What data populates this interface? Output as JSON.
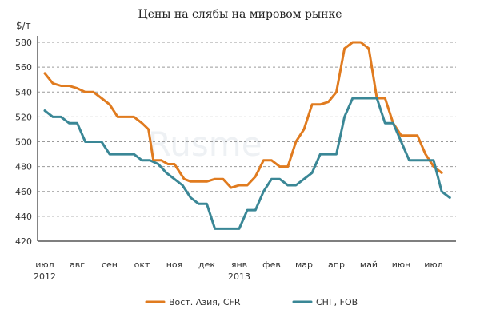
{
  "chart_data": {
    "type": "line",
    "title": "Цены на слябы на мировом рынке",
    "ylabel": "$/т",
    "ylim": [
      420,
      580
    ],
    "yticks": [
      420,
      440,
      460,
      480,
      500,
      520,
      540,
      560,
      580
    ],
    "grid": "horizontal",
    "legend_position": "bottom",
    "months": [
      {
        "label": "июл",
        "year": "2012"
      },
      {
        "label": "авг",
        "year": ""
      },
      {
        "label": "сен",
        "year": ""
      },
      {
        "label": "окт",
        "year": ""
      },
      {
        "label": "ноя",
        "year": ""
      },
      {
        "label": "дек",
        "year": ""
      },
      {
        "label": "янв",
        "year": "2013"
      },
      {
        "label": "фев",
        "year": ""
      },
      {
        "label": "мар",
        "year": ""
      },
      {
        "label": "апр",
        "year": ""
      },
      {
        "label": "май",
        "year": ""
      },
      {
        "label": "июн",
        "year": ""
      },
      {
        "label": "июл",
        "year": ""
      }
    ],
    "x_unit": "months since July 2012",
    "series": [
      {
        "name": "Вост. Азия, CFR",
        "color": "#e07b1f",
        "points": [
          [
            0.0,
            555
          ],
          [
            0.25,
            547
          ],
          [
            0.5,
            545
          ],
          [
            0.75,
            545
          ],
          [
            1.0,
            543
          ],
          [
            1.25,
            540
          ],
          [
            1.5,
            540
          ],
          [
            1.75,
            535
          ],
          [
            2.0,
            530
          ],
          [
            2.25,
            520
          ],
          [
            2.5,
            520
          ],
          [
            2.75,
            520
          ],
          [
            3.0,
            515
          ],
          [
            3.2,
            510
          ],
          [
            3.35,
            485
          ],
          [
            3.6,
            485
          ],
          [
            3.8,
            482
          ],
          [
            4.0,
            482
          ],
          [
            4.3,
            470
          ],
          [
            4.5,
            468
          ],
          [
            4.75,
            468
          ],
          [
            5.0,
            468
          ],
          [
            5.25,
            470
          ],
          [
            5.5,
            470
          ],
          [
            5.75,
            463
          ],
          [
            6.0,
            465
          ],
          [
            6.25,
            465
          ],
          [
            6.5,
            472
          ],
          [
            6.75,
            485
          ],
          [
            7.0,
            485
          ],
          [
            7.25,
            480
          ],
          [
            7.5,
            480
          ],
          [
            7.75,
            500
          ],
          [
            8.0,
            510
          ],
          [
            8.25,
            530
          ],
          [
            8.5,
            530
          ],
          [
            8.75,
            532
          ],
          [
            9.0,
            540
          ],
          [
            9.25,
            575
          ],
          [
            9.5,
            580
          ],
          [
            9.75,
            580
          ],
          [
            10.0,
            575
          ],
          [
            10.25,
            535
          ],
          [
            10.5,
            535
          ],
          [
            10.75,
            515
          ],
          [
            11.0,
            505
          ],
          [
            11.25,
            505
          ],
          [
            11.5,
            505
          ],
          [
            11.75,
            490
          ],
          [
            12.0,
            480
          ],
          [
            12.25,
            475
          ]
        ]
      },
      {
        "name": "СНГ, FOB",
        "color": "#3a8796",
        "points": [
          [
            0.0,
            525
          ],
          [
            0.25,
            520
          ],
          [
            0.5,
            520
          ],
          [
            0.75,
            515
          ],
          [
            1.0,
            515
          ],
          [
            1.25,
            500
          ],
          [
            1.5,
            500
          ],
          [
            1.75,
            500
          ],
          [
            2.0,
            490
          ],
          [
            2.25,
            490
          ],
          [
            2.5,
            490
          ],
          [
            2.75,
            490
          ],
          [
            3.0,
            485
          ],
          [
            3.25,
            485
          ],
          [
            3.5,
            482
          ],
          [
            3.75,
            475
          ],
          [
            4.0,
            470
          ],
          [
            4.25,
            465
          ],
          [
            4.5,
            455
          ],
          [
            4.75,
            450
          ],
          [
            5.0,
            450
          ],
          [
            5.25,
            430
          ],
          [
            5.5,
            430
          ],
          [
            5.75,
            430
          ],
          [
            6.0,
            430
          ],
          [
            6.25,
            445
          ],
          [
            6.5,
            445
          ],
          [
            6.75,
            460
          ],
          [
            7.0,
            470
          ],
          [
            7.25,
            470
          ],
          [
            7.5,
            465
          ],
          [
            7.75,
            465
          ],
          [
            8.0,
            470
          ],
          [
            8.25,
            475
          ],
          [
            8.5,
            490
          ],
          [
            8.75,
            490
          ],
          [
            9.0,
            490
          ],
          [
            9.25,
            520
          ],
          [
            9.5,
            535
          ],
          [
            9.75,
            535
          ],
          [
            10.0,
            535
          ],
          [
            10.25,
            535
          ],
          [
            10.5,
            515
          ],
          [
            10.75,
            515
          ],
          [
            11.0,
            500
          ],
          [
            11.25,
            485
          ],
          [
            11.5,
            485
          ],
          [
            11.75,
            485
          ],
          [
            12.0,
            485
          ],
          [
            12.25,
            460
          ],
          [
            12.5,
            455
          ]
        ]
      }
    ]
  }
}
